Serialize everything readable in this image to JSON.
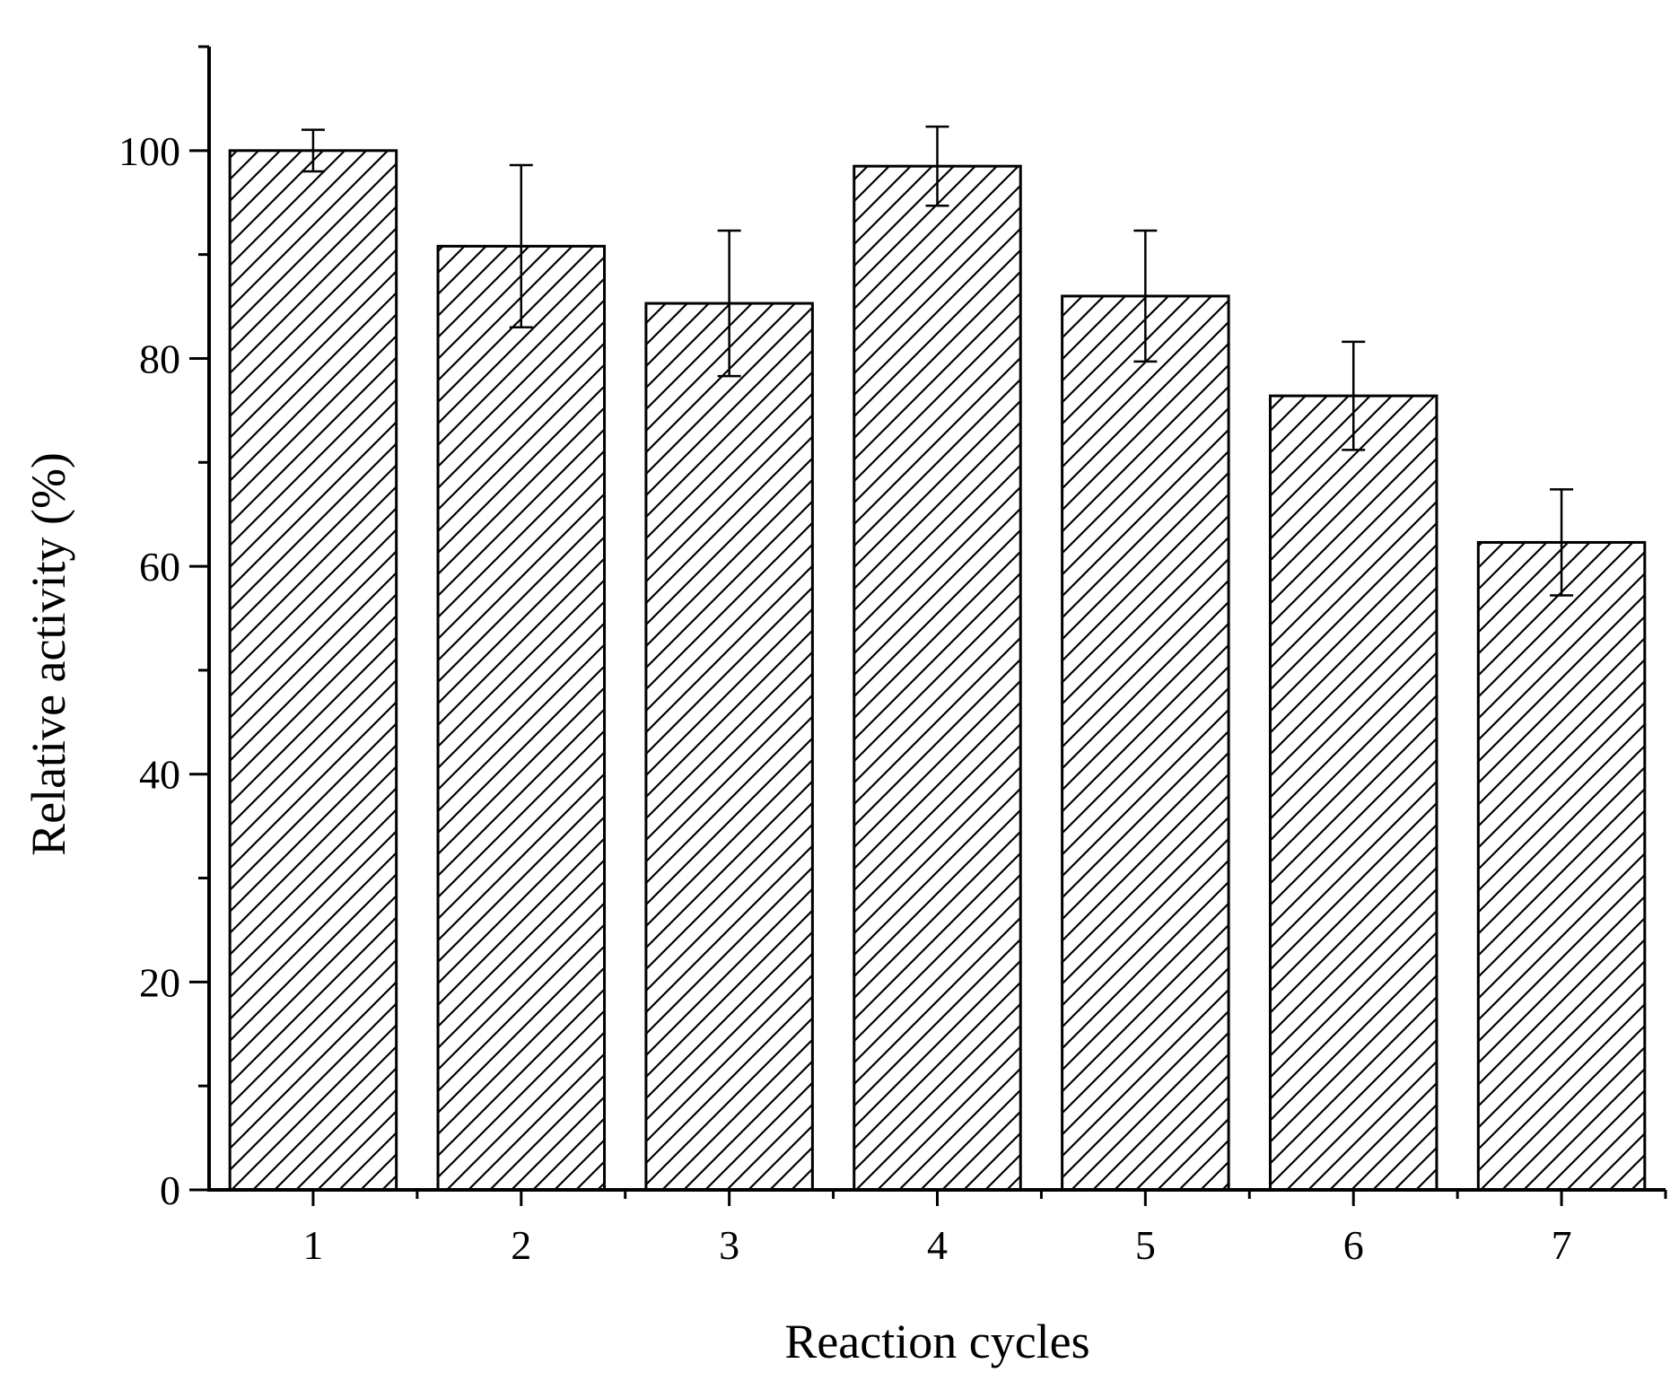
{
  "chart_data": {
    "type": "bar",
    "title": "",
    "xlabel": "Reaction cycles",
    "ylabel": "Relative activity (%)",
    "categories": [
      "1",
      "2",
      "3",
      "4",
      "5",
      "6",
      "7"
    ],
    "values": [
      100.0,
      90.8,
      85.3,
      98.5,
      86.0,
      76.4,
      62.3
    ],
    "error": [
      2.0,
      7.8,
      7.0,
      3.8,
      6.3,
      5.2,
      5.1
    ],
    "ylim": [
      0,
      110
    ],
    "yticks": [
      0,
      20,
      40,
      60,
      80,
      100
    ],
    "yminor_step": 10,
    "fill": "hatched",
    "grid": false,
    "legend": "none",
    "colors": {
      "bar_edge": "#000000",
      "bar_fill": "#ffffff",
      "hatch": "#000000",
      "axis": "#000000"
    }
  }
}
